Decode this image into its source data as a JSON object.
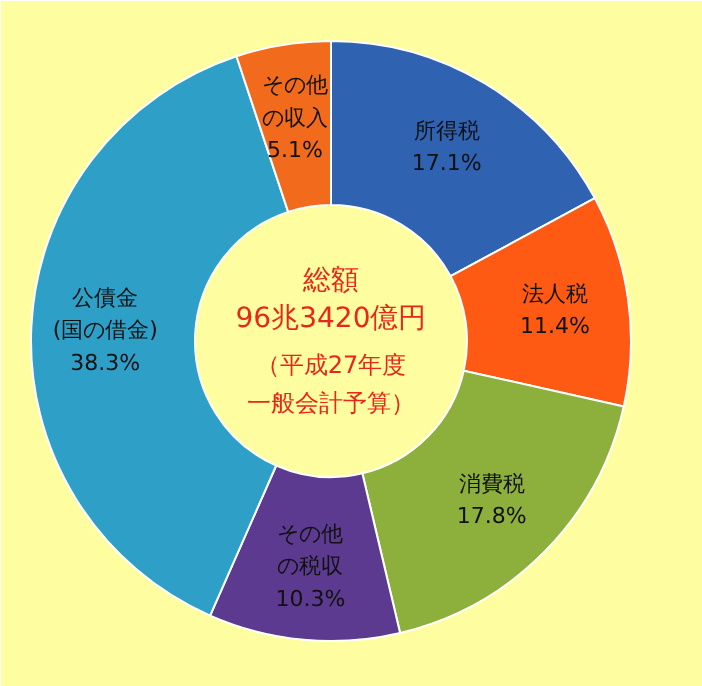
{
  "chart_data": {
    "type": "donut",
    "categories": [
      "所得税",
      "法人税",
      "消費税",
      "その他の税収",
      "公債金(国の借金)",
      "その他の収入"
    ],
    "values": [
      17.1,
      11.4,
      17.8,
      10.3,
      38.3,
      5.1
    ],
    "colors": [
      "#2f62b0",
      "#ff5a14",
      "#8db03c",
      "#5b3a90",
      "#2ea0c8",
      "#f26b1d"
    ],
    "value_labels": [
      "17.1%",
      "11.4%",
      "17.8%",
      "10.3%",
      "38.3%",
      "5.1%"
    ],
    "annotations": [
      "総額",
      "96兆3420億円",
      "（平成27年度",
      "一般会計予算）"
    ]
  }
}
